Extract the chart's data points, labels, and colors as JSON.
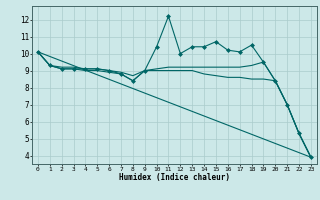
{
  "xlabel": "Humidex (Indice chaleur)",
  "bg_color": "#cce8e8",
  "grid_color": "#aacccc",
  "line_color": "#006666",
  "xlim": [
    -0.5,
    23.5
  ],
  "ylim": [
    3.5,
    12.8
  ],
  "xticks": [
    0,
    1,
    2,
    3,
    4,
    5,
    6,
    7,
    8,
    9,
    10,
    11,
    12,
    13,
    14,
    15,
    16,
    17,
    18,
    19,
    20,
    21,
    22,
    23
  ],
  "yticks": [
    4,
    5,
    6,
    7,
    8,
    9,
    10,
    11,
    12
  ],
  "series": [
    {
      "x": [
        0,
        1,
        2,
        3,
        4,
        5,
        6,
        7,
        8,
        9,
        10,
        11,
        12,
        13,
        14,
        15,
        16,
        17,
        18,
        19,
        20,
        21,
        22,
        23
      ],
      "y": [
        10.1,
        9.3,
        9.1,
        9.1,
        9.1,
        9.1,
        9.0,
        8.8,
        8.4,
        9.0,
        10.4,
        12.2,
        10.0,
        10.4,
        10.4,
        10.7,
        10.2,
        10.1,
        10.5,
        9.5,
        8.4,
        7.0,
        5.3,
        3.9
      ],
      "marker": "D",
      "markersize": 2.0,
      "linewidth": 0.8,
      "has_marker": true
    },
    {
      "x": [
        0,
        1,
        2,
        3,
        4,
        5,
        6,
        7,
        8,
        9,
        10,
        11,
        12,
        13,
        14,
        15,
        16,
        17,
        18,
        19,
        20,
        21,
        22,
        23
      ],
      "y": [
        10.1,
        9.3,
        9.1,
        9.1,
        9.0,
        9.0,
        8.9,
        8.8,
        8.4,
        9.0,
        9.0,
        9.0,
        9.0,
        9.0,
        8.8,
        8.7,
        8.6,
        8.6,
        8.5,
        8.5,
        8.4,
        7.0,
        5.3,
        3.9
      ],
      "marker": null,
      "markersize": 0,
      "linewidth": 0.8,
      "has_marker": false
    },
    {
      "x": [
        0,
        23
      ],
      "y": [
        10.1,
        3.9
      ],
      "marker": null,
      "markersize": 0,
      "linewidth": 0.8,
      "has_marker": false
    },
    {
      "x": [
        0,
        1,
        2,
        3,
        4,
        5,
        6,
        7,
        8,
        9,
        10,
        11,
        12,
        13,
        14,
        15,
        16,
        17,
        18,
        19,
        20,
        21,
        22,
        23
      ],
      "y": [
        10.1,
        9.3,
        9.2,
        9.2,
        9.1,
        9.1,
        9.0,
        8.9,
        8.7,
        9.0,
        9.1,
        9.2,
        9.2,
        9.2,
        9.2,
        9.2,
        9.2,
        9.2,
        9.3,
        9.5,
        8.4,
        7.0,
        5.3,
        3.9
      ],
      "marker": null,
      "markersize": 0,
      "linewidth": 0.8,
      "has_marker": false
    }
  ]
}
